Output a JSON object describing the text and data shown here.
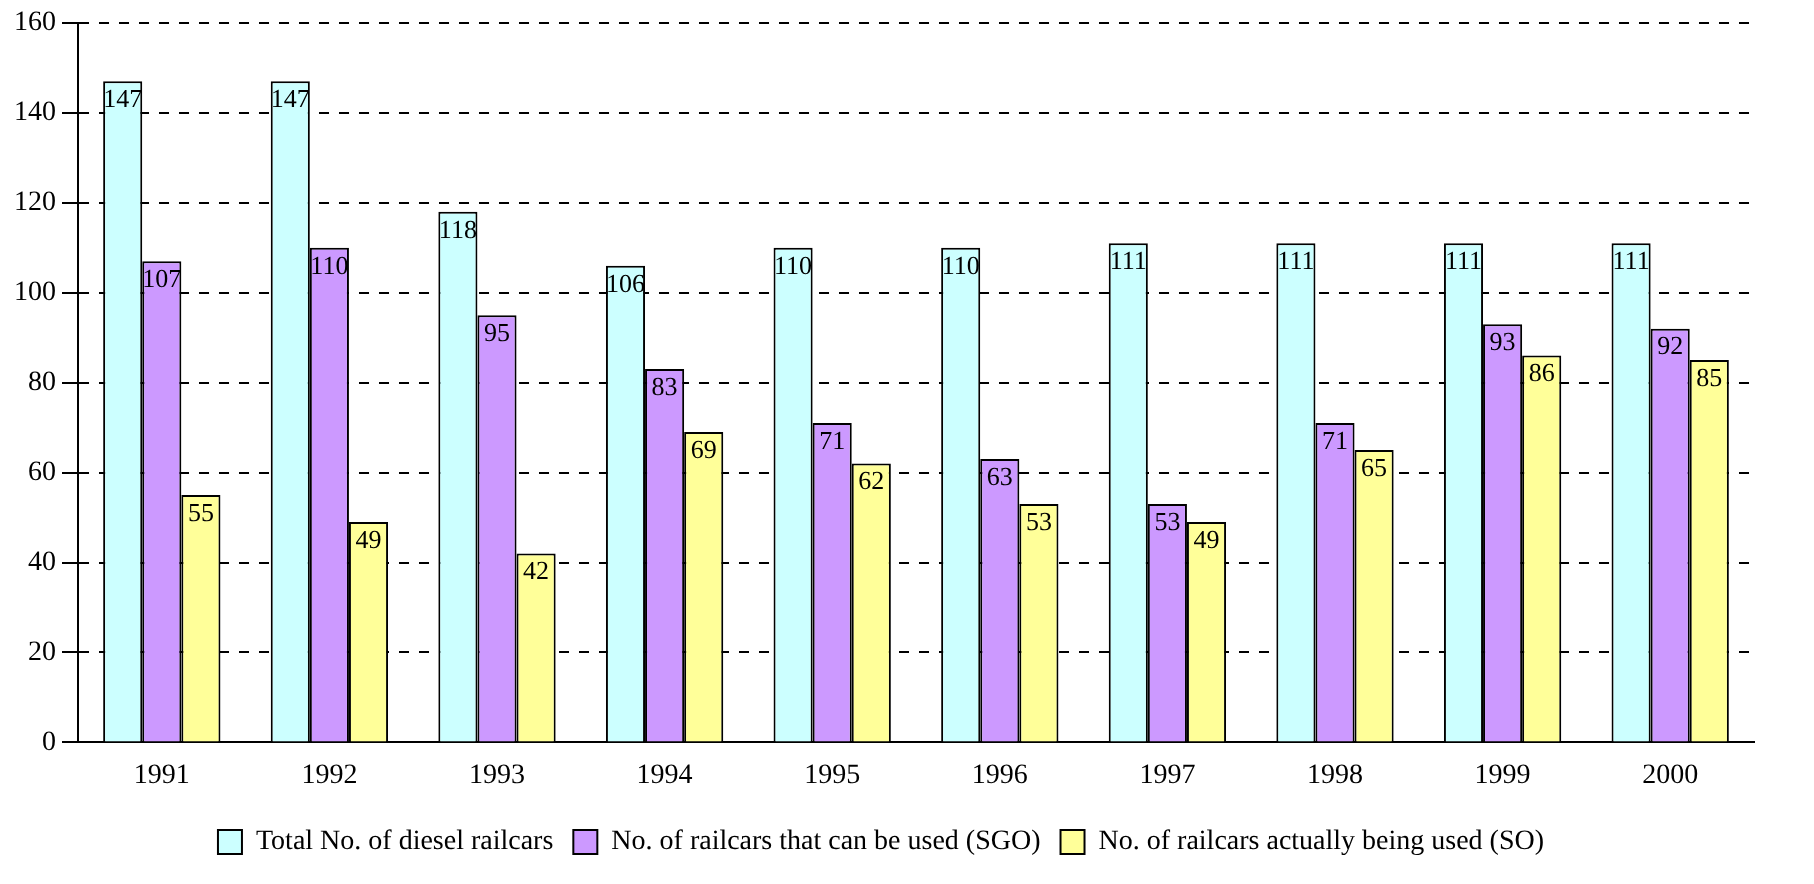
{
  "chart_data": {
    "type": "bar",
    "categories": [
      "1991",
      "1992",
      "1993",
      "1994",
      "1995",
      "1996",
      "1997",
      "1998",
      "1999",
      "2000"
    ],
    "series": [
      {
        "name": "Total No. of diesel railcars",
        "color": "#ccffff",
        "values": [
          147,
          147,
          118,
          106,
          110,
          110,
          111,
          111,
          111,
          111
        ]
      },
      {
        "name": "No. of railcars that can be used (SGO)",
        "color": "#cc99ff",
        "values": [
          107,
          110,
          95,
          83,
          71,
          63,
          53,
          71,
          93,
          92
        ]
      },
      {
        "name": "No. of railcars actually being used (SO)",
        "color": "#ffff99",
        "values": [
          55,
          49,
          42,
          69,
          62,
          53,
          49,
          65,
          86,
          85
        ]
      }
    ],
    "ylim": [
      0,
      160
    ],
    "yticks": [
      0,
      20,
      40,
      60,
      80,
      100,
      120,
      140,
      160
    ],
    "grid": "y",
    "legend": "bottom",
    "data_labels": true
  }
}
